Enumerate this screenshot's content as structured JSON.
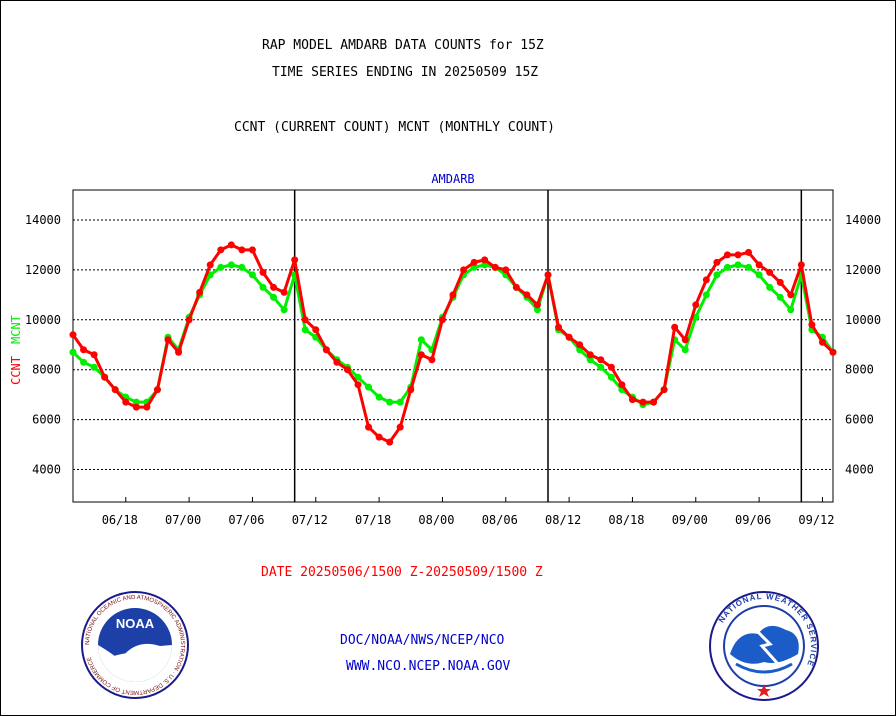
{
  "title_lines": [
    "RAP MODEL AMDARB DATA COUNTS for 15Z",
    "TIME SERIES ENDING IN 20250509 15Z",
    "CCNT (CURRENT COUNT) MCNT (MONTHLY COUNT)"
  ],
  "date_range": "DATE 20250506/1500 Z-20250509/1500 Z",
  "footer": {
    "org": "DOC/NOAA/NWS/NCEP/NCO",
    "url": "WWW.NCO.NCEP.NOAA.GOV"
  },
  "logos": {
    "left": {
      "name": "NOAA",
      "ring_text": "NATIONAL OCEANIC AND ATMOSPHERIC ADMINISTRATION · U.S. DEPARTMENT OF COMMERCE"
    },
    "right": {
      "name": "NWS",
      "ring_text": "NATIONAL WEATHER SERVICE"
    }
  },
  "colors": {
    "ccnt": "#ff0000",
    "mcnt": "#00ee00",
    "panel_title": "#0000cc",
    "footer": "#0000cc",
    "date": "#ff0000"
  },
  "chart_data": {
    "type": "line",
    "panel_title": "AMDARB",
    "ylabel_ccnt": "CCNT",
    "ylabel_mcnt": "MCNT",
    "ylim": [
      2700,
      15200
    ],
    "yticks": [
      4000,
      6000,
      8000,
      10000,
      12000,
      14000
    ],
    "xlim": [
      0,
      72
    ],
    "xticks": [
      {
        "x": 5,
        "label": "06/18"
      },
      {
        "x": 11,
        "label": "07/00"
      },
      {
        "x": 17,
        "label": "07/06"
      },
      {
        "x": 23,
        "label": "07/12"
      },
      {
        "x": 29,
        "label": "07/18"
      },
      {
        "x": 35,
        "label": "08/00"
      },
      {
        "x": 41,
        "label": "08/06"
      },
      {
        "x": 47,
        "label": "08/12"
      },
      {
        "x": 53,
        "label": "08/18"
      },
      {
        "x": 59,
        "label": "09/00"
      },
      {
        "x": 65,
        "label": "09/06"
      },
      {
        "x": 71,
        "label": "09/12"
      }
    ],
    "day_boundaries": [
      21,
      45,
      69
    ],
    "grid": true,
    "series": [
      {
        "name": "CCNT",
        "color": "#ff0000",
        "values": [
          9400,
          8800,
          8600,
          7700,
          7200,
          6700,
          6500,
          6500,
          7200,
          9200,
          8700,
          10000,
          11100,
          12200,
          12800,
          13000,
          12800,
          12800,
          11900,
          11300,
          11100,
          12400,
          10000,
          9600,
          8800,
          8300,
          8000,
          7400,
          5700,
          5300,
          5100,
          5700,
          7200,
          8600,
          8400,
          10000,
          11000,
          12000,
          12300,
          12400,
          12100,
          12000,
          11300,
          11000,
          10600,
          11800,
          9700,
          9300,
          9000,
          8600,
          8400,
          8100,
          7400,
          6800,
          6700,
          6700,
          7200,
          9700,
          9200,
          10600,
          11600,
          12300,
          12600,
          12600,
          12700,
          12200,
          11900,
          11500,
          11000,
          12200,
          9800,
          9100,
          8700
        ]
      },
      {
        "name": "MCNT",
        "color": "#00ee00",
        "values": [
          8700,
          8300,
          8100,
          7700,
          7200,
          6900,
          6700,
          6700,
          7200,
          9300,
          8800,
          10100,
          11000,
          11800,
          12100,
          12200,
          12100,
          11800,
          11300,
          10900,
          10400,
          11800,
          9600,
          9300,
          8800,
          8400,
          8100,
          7700,
          7300,
          6900,
          6700,
          6700,
          7300,
          9200,
          8800,
          10100,
          10900,
          11800,
          12100,
          12200,
          12100,
          11800,
          11300,
          10900,
          10400,
          11800,
          9600,
          9300,
          8800,
          8400,
          8100,
          7700,
          7200,
          6900,
          6600,
          6700,
          7200,
          9200,
          8800,
          10100,
          11000,
          11800,
          12100,
          12200,
          12100,
          11800,
          11300,
          10900,
          10400,
          11800,
          9600,
          9300,
          8700
        ]
      }
    ]
  }
}
